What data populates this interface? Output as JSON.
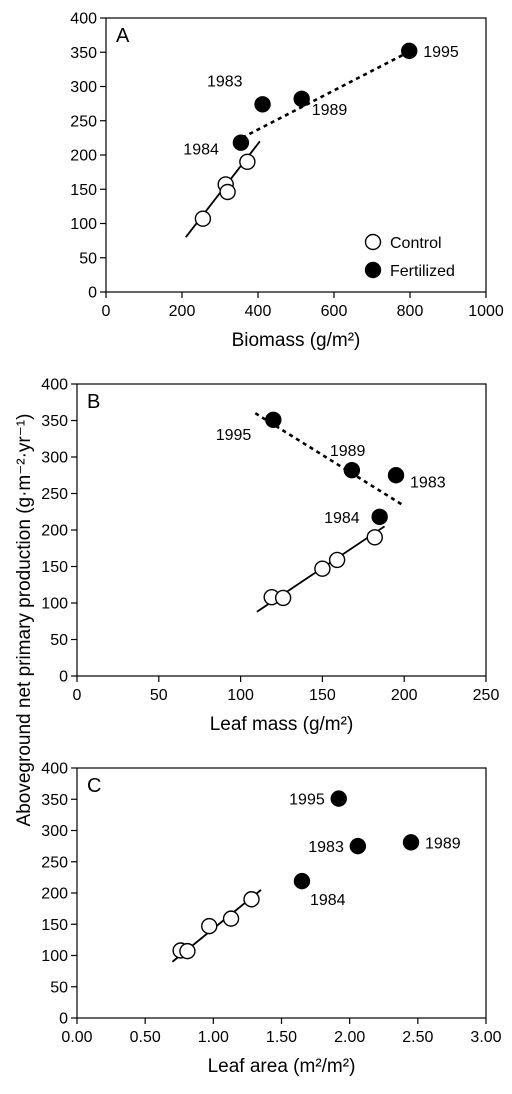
{
  "figure": {
    "shared_ylabel": "Aboveground net primary production (g·m⁻²·yr⁻¹)",
    "legend": [
      {
        "label": "Control",
        "marker": "open-circle"
      },
      {
        "label": "Fertilized",
        "marker": "filled-circle"
      }
    ]
  },
  "chart_data": [
    {
      "type": "scatter",
      "panel": "A",
      "xlabel": "Biomass (g/m²)",
      "xlim": [
        0,
        1000
      ],
      "ylim": [
        0,
        400
      ],
      "xticks": [
        0,
        200,
        400,
        600,
        800,
        1000
      ],
      "xtick_labels": [
        "0",
        "200",
        "400",
        "600",
        "800",
        "1000"
      ],
      "yticks": [
        0,
        50,
        100,
        150,
        200,
        250,
        300,
        350,
        400
      ],
      "ytick_labels": [
        "0",
        "50",
        "100",
        "150",
        "200",
        "250",
        "300",
        "350",
        "400"
      ],
      "legend_position": "bottom-right",
      "series": [
        {
          "name": "Control",
          "marker": "open",
          "points": [
            [
              255,
              107
            ],
            [
              315,
              157
            ],
            [
              320,
              146
            ],
            [
              372,
              190
            ]
          ]
        },
        {
          "name": "Fertilized",
          "marker": "filled",
          "points": [
            [
              355,
              218
            ],
            [
              412,
              274
            ],
            [
              515,
              282
            ],
            [
              798,
              352
            ]
          ]
        }
      ],
      "lines": [
        {
          "style": "solid",
          "from": [
            210,
            80
          ],
          "to": [
            405,
            220
          ]
        },
        {
          "style": "dotted",
          "from": [
            340,
            220
          ],
          "to": [
            795,
            350
          ]
        }
      ],
      "annotations": [
        {
          "text": "1983",
          "x": 412,
          "y": 274
        },
        {
          "text": "1984",
          "x": 355,
          "y": 218
        },
        {
          "text": "1989",
          "x": 515,
          "y": 282
        },
        {
          "text": "1995",
          "x": 798,
          "y": 352
        }
      ]
    },
    {
      "type": "scatter",
      "panel": "B",
      "xlabel": "Leaf mass (g/m²)",
      "xlim": [
        0,
        250
      ],
      "ylim": [
        0,
        400
      ],
      "xticks": [
        0,
        50,
        100,
        150,
        200,
        250
      ],
      "xtick_labels": [
        "0",
        "50",
        "100",
        "150",
        "200",
        "250"
      ],
      "yticks": [
        0,
        50,
        100,
        150,
        200,
        250,
        300,
        350,
        400
      ],
      "ytick_labels": [
        "0",
        "50",
        "100",
        "150",
        "200",
        "250",
        "300",
        "350",
        "400"
      ],
      "series": [
        {
          "name": "Control",
          "marker": "open",
          "points": [
            [
              119,
              108
            ],
            [
              126,
              107
            ],
            [
              150,
              147
            ],
            [
              159,
              159
            ],
            [
              182,
              190
            ]
          ]
        },
        {
          "name": "Fertilized",
          "marker": "filled",
          "points": [
            [
              120,
              351
            ],
            [
              168,
              282
            ],
            [
              195,
              275
            ],
            [
              185,
              218
            ]
          ]
        }
      ],
      "lines": [
        {
          "style": "solid",
          "from": [
            110,
            88
          ],
          "to": [
            188,
            205
          ]
        },
        {
          "style": "dotted",
          "from": [
            109,
            360
          ],
          "to": [
            200,
            233
          ]
        }
      ],
      "annotations": [
        {
          "text": "1995",
          "x": 120,
          "y": 351
        },
        {
          "text": "1989",
          "x": 168,
          "y": 282
        },
        {
          "text": "1983",
          "x": 195,
          "y": 275
        },
        {
          "text": "1984",
          "x": 185,
          "y": 218
        }
      ]
    },
    {
      "type": "scatter",
      "panel": "C",
      "xlabel": "Leaf area (m²/m²)",
      "xlim": [
        0,
        3
      ],
      "ylim": [
        0,
        400
      ],
      "xticks": [
        0,
        0.5,
        1,
        1.5,
        2,
        2.5,
        3
      ],
      "xtick_labels": [
        "0.00",
        "0.50",
        "1.00",
        "1.50",
        "2.00",
        "2.50",
        "3.00"
      ],
      "yticks": [
        0,
        50,
        100,
        150,
        200,
        250,
        300,
        350,
        400
      ],
      "ytick_labels": [
        "0",
        "50",
        "100",
        "150",
        "200",
        "250",
        "300",
        "350",
        "400"
      ],
      "series": [
        {
          "name": "Control",
          "marker": "open",
          "points": [
            [
              0.76,
              108
            ],
            [
              0.81,
              107
            ],
            [
              0.97,
              147
            ],
            [
              1.13,
              159
            ],
            [
              1.28,
              190
            ]
          ]
        },
        {
          "name": "Fertilized",
          "marker": "filled",
          "points": [
            [
              1.92,
              351
            ],
            [
              2.06,
              275
            ],
            [
              2.45,
              281
            ],
            [
              1.65,
              219
            ]
          ]
        }
      ],
      "lines": [
        {
          "style": "solid",
          "from": [
            0.7,
            90
          ],
          "to": [
            1.35,
            205
          ]
        }
      ],
      "annotations": [
        {
          "text": "1995",
          "x": 1.92,
          "y": 351
        },
        {
          "text": "1983",
          "x": 2.06,
          "y": 275
        },
        {
          "text": "1989",
          "x": 2.45,
          "y": 281
        },
        {
          "text": "1984",
          "x": 1.65,
          "y": 219
        }
      ]
    }
  ]
}
